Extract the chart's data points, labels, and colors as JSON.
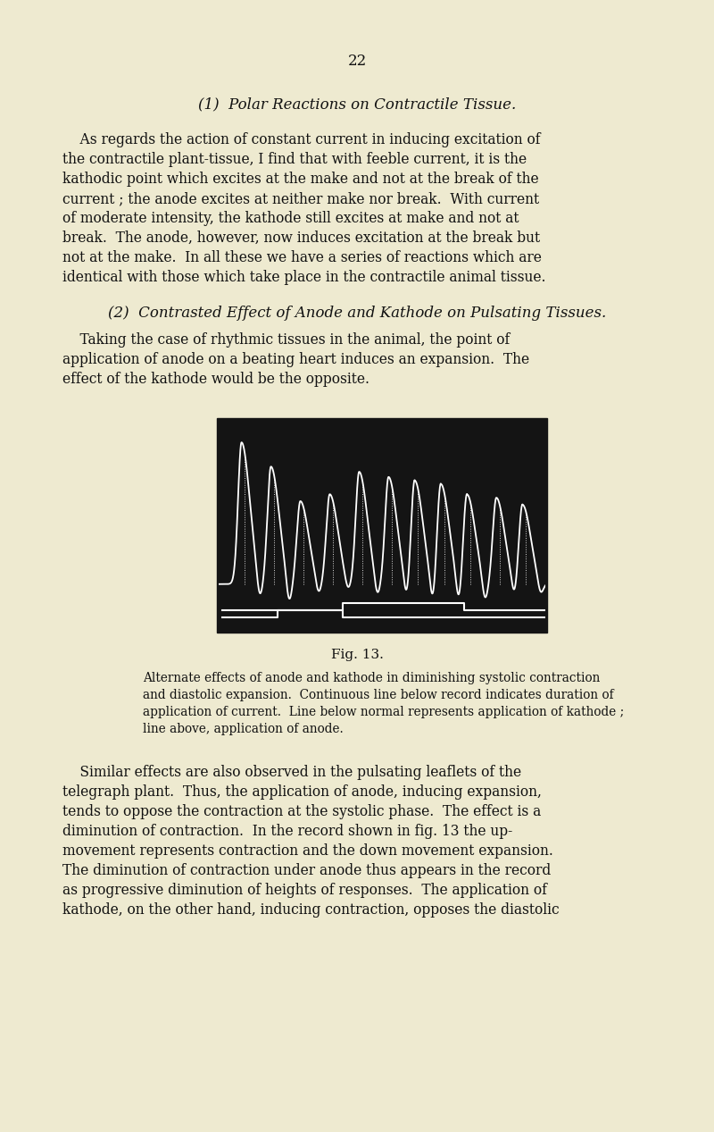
{
  "bg_color": "#eeead0",
  "page_number": "22",
  "title1": "(1)  Polar Reactions on Contractile Tissue.",
  "title2": "(2)  Contrasted Effect of Anode and Kathode on Pulsating Tissues.",
  "para1_lines": [
    "    As regards the action of constant current in inducing excitation of",
    "the contractile plant-tissue, I find that with feeble current, it is the",
    "kathodic point which excites at the make and not at the break of the",
    "current ; the anode excites at neither make nor break.  With current",
    "of moderate intensity, the kathode still excites at make and not at",
    "break.  The anode, however, now induces excitation at the break but",
    "not at the make.  In all these we have a series of reactions which are",
    "identical with those which take place in the contractile animal tissue."
  ],
  "para2_lines": [
    "    Taking the case of rhythmic tissues in the animal, the point of",
    "application of anode on a beating heart induces an expansion.  The",
    "effect of the kathode would be the opposite."
  ],
  "fig_caption_title": "Fig. 13.",
  "fig_caption_lines": [
    "Alternate effects of anode and kathode in diminishing systolic contraction",
    "and diastolic expansion.  Continuous line below record indicates duration of",
    "application of current.  Line below normal represents application of kathode ;",
    "line above, application of anode."
  ],
  "para3_lines": [
    "    Similar effects are also observed in the pulsating leaflets of the",
    "telegraph plant.  Thus, the application of anode, inducing expansion,",
    "tends to oppose the contraction at the systolic phase.  The effect is a",
    "diminution of contraction.  In the record shown in fig. 13 the up-",
    "movement represents contraction and the down movement expansion.",
    "The diminution of contraction under anode thus appears in the record",
    "as progressive diminution of heights of responses.  The application of",
    "kathode, on the other hand, inducing contraction, opposes the diastolic"
  ],
  "text_color": "#111111",
  "fig_bg": "#111111",
  "wave_color": "#ffffff"
}
